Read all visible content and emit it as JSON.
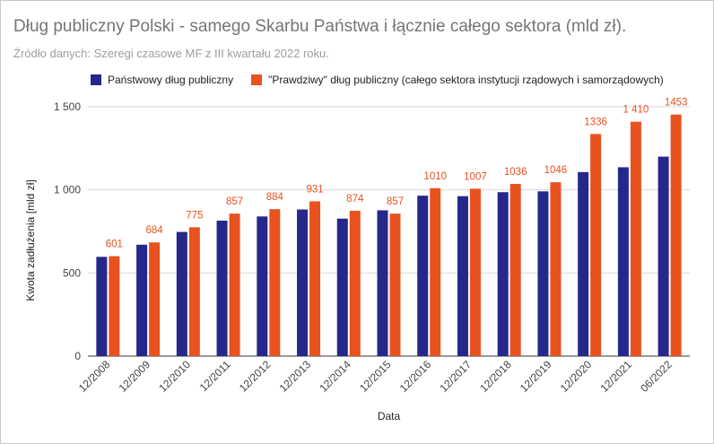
{
  "chart_data": {
    "type": "bar",
    "title": "Dług publiczny Polski - samego Skarbu Państwa i łącznie całego sektora (mld zł).",
    "subtitle": "Źródło danych: Szeregi czasowe MF z III kwartału 2022 roku.",
    "xlabel": "Data",
    "ylabel": "Kwota zadłużenia  [mld zł]",
    "ylim": [
      0,
      1500
    ],
    "yticks": [
      0,
      500,
      1000,
      1500
    ],
    "ytick_labels": [
      "0",
      "500",
      "1 000",
      "1 500"
    ],
    "grid": true,
    "legend_position": "top",
    "categories": [
      "12/2008",
      "12/2009",
      "12/2010",
      "12/2011",
      "12/2012",
      "12/2013",
      "12/2014",
      "12/2015",
      "12/2016",
      "12/2017",
      "12/2018",
      "12/2019",
      "12/2020",
      "12/2021",
      "06/2022"
    ],
    "series": [
      {
        "name": "Państwowy dług publiczny",
        "color": "#25278a",
        "values": [
          597,
          670,
          747,
          815,
          840,
          882,
          827,
          877,
          965,
          962,
          986,
          991,
          1107,
          1136,
          1200
        ],
        "data_labels": null
      },
      {
        "name": "\"Prawdziwy\" dług publiczny (całego sektora instytucji rządowych i samorządowych)",
        "color": "#e8521e",
        "values": [
          601,
          684,
          775,
          857,
          884,
          931,
          874,
          857,
          1010,
          1007,
          1036,
          1046,
          1336,
          1410,
          1453
        ],
        "data_labels": [
          "601",
          "684",
          "775",
          "857",
          "884",
          "931",
          "874",
          "857",
          "1010",
          "1007",
          "1036",
          "1046",
          "1336",
          "1 410",
          "1453"
        ]
      }
    ]
  }
}
